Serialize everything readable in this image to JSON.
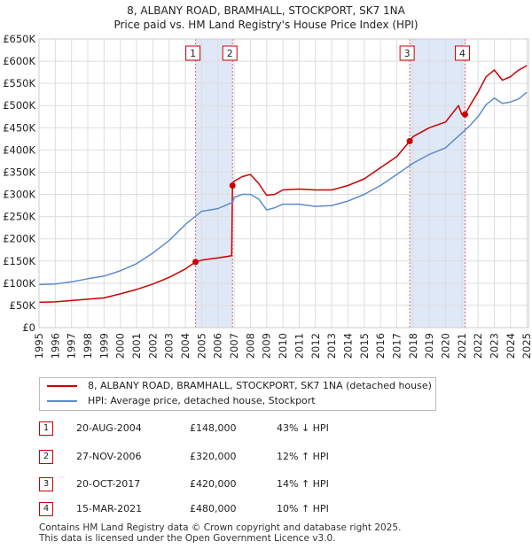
{
  "title_line1": "8, ALBANY ROAD, BRAMHALL, STOCKPORT, SK7 1NA",
  "title_line2": "Price paid vs. HM Land Registry's House Price Index (HPI)",
  "colors": {
    "property": "#cc0000",
    "hpi": "#5b8ccc",
    "shade": "#dfe8f7",
    "grid": "#dddddd"
  },
  "chart_data": {
    "type": "line",
    "title": "Price paid vs. HM Land Registry's House Price Index (HPI)",
    "xlim": [
      1995,
      2025.1
    ],
    "ylim": [
      0,
      650000
    ],
    "y_ticks": [
      0,
      50000,
      100000,
      150000,
      200000,
      250000,
      300000,
      350000,
      400000,
      450000,
      500000,
      550000,
      600000,
      650000
    ],
    "y_tick_labels": [
      "£0",
      "£50K",
      "£100K",
      "£150K",
      "£200K",
      "£250K",
      "£300K",
      "£350K",
      "£400K",
      "£450K",
      "£500K",
      "£550K",
      "£600K",
      "£650K"
    ],
    "x_ticks": [
      1995,
      1996,
      1997,
      1998,
      1999,
      2000,
      2001,
      2002,
      2003,
      2004,
      2005,
      2006,
      2007,
      2008,
      2009,
      2010,
      2011,
      2012,
      2013,
      2014,
      2015,
      2016,
      2017,
      2018,
      2019,
      2020,
      2021,
      2022,
      2023,
      2024,
      2025
    ],
    "x_tick_labels": [
      "1995",
      "1996",
      "1997",
      "1998",
      "1999",
      "2000",
      "2001",
      "2002",
      "2003",
      "2004",
      "2005",
      "2006",
      "2007",
      "2008",
      "2009",
      "2010",
      "2011",
      "2012",
      "2013",
      "2014",
      "2015",
      "2016",
      "2017",
      "2018",
      "2019",
      "2020",
      "2021",
      "2022",
      "2023",
      "2024",
      "2025"
    ],
    "shaded_ranges": [
      [
        2004.63,
        2006.9
      ],
      [
        2017.8,
        2021.2
      ]
    ],
    "series": [
      {
        "name": "8, ALBANY ROAD, BRAMHALL, STOCKPORT, SK7 1NA (detached house)",
        "x": [
          1995,
          1996,
          1997,
          1998,
          1999,
          2000,
          2001,
          2002,
          2003,
          2004,
          2004.63,
          2005,
          2006,
          2006.85,
          2006.9,
          2007,
          2007.5,
          2008,
          2008.5,
          2009,
          2009.5,
          2010,
          2011,
          2012,
          2013,
          2014,
          2015,
          2016,
          2017,
          2017.8,
          2018,
          2019,
          2020,
          2020.8,
          2021,
          2021.2,
          2021.5,
          2022,
          2022.5,
          2023,
          2023.5,
          2024,
          2024.5,
          2025
        ],
        "values": [
          57000,
          58000,
          61000,
          64000,
          67000,
          76000,
          86000,
          98000,
          113000,
          132000,
          148000,
          152000,
          157000,
          162000,
          320000,
          330000,
          340000,
          345000,
          325000,
          298000,
          300000,
          310000,
          312000,
          310000,
          310000,
          320000,
          335000,
          360000,
          385000,
          420000,
          430000,
          450000,
          463000,
          500000,
          480000,
          480000,
          500000,
          530000,
          565000,
          580000,
          557000,
          565000,
          580000,
          590000
        ]
      },
      {
        "name": "HPI: Average price, detached house, Stockport",
        "x": [
          1995,
          1996,
          1997,
          1998,
          1999,
          2000,
          2001,
          2002,
          2003,
          2004,
          2005,
          2006,
          2006.9,
          2007,
          2007.5,
          2008,
          2008.5,
          2009,
          2009.5,
          2010,
          2011,
          2012,
          2013,
          2014,
          2015,
          2016,
          2017,
          2018,
          2019,
          2020,
          2021,
          2021.5,
          2022,
          2022.5,
          2023,
          2023.5,
          2024,
          2024.5,
          2025
        ],
        "values": [
          97000,
          98000,
          103000,
          110000,
          116000,
          128000,
          144000,
          168000,
          196000,
          232000,
          262000,
          268000,
          282000,
          293000,
          300000,
          300000,
          290000,
          265000,
          270000,
          278000,
          278000,
          273000,
          275000,
          285000,
          300000,
          320000,
          345000,
          370000,
          390000,
          405000,
          438000,
          455000,
          475000,
          502000,
          517000,
          505000,
          508000,
          515000,
          530000
        ]
      }
    ],
    "sales": [
      {
        "label": "1",
        "x": 2004.63,
        "value": 148000
      },
      {
        "label": "2",
        "x": 2006.9,
        "value": 320000
      },
      {
        "label": "3",
        "x": 2017.8,
        "value": 420000
      },
      {
        "label": "4",
        "x": 2021.2,
        "value": 480000
      }
    ]
  },
  "legend": {
    "property_label": "8, ALBANY ROAD, BRAMHALL, STOCKPORT, SK7 1NA (detached house)",
    "hpi_label": "HPI: Average price, detached house, Stockport"
  },
  "transactions": [
    {
      "num": "1",
      "date": "20-AUG-2004",
      "price": "£148,000",
      "hpi": "43% ↓ HPI"
    },
    {
      "num": "2",
      "date": "27-NOV-2006",
      "price": "£320,000",
      "hpi": "12% ↑ HPI"
    },
    {
      "num": "3",
      "date": "20-OCT-2017",
      "price": "£420,000",
      "hpi": "14% ↑ HPI"
    },
    {
      "num": "4",
      "date": "15-MAR-2021",
      "price": "£480,000",
      "hpi": "10% ↑ HPI"
    }
  ],
  "footer": {
    "line1": "Contains HM Land Registry data © Crown copyright and database right 2025.",
    "line2": "This data is licensed under the Open Government Licence v3.0."
  }
}
